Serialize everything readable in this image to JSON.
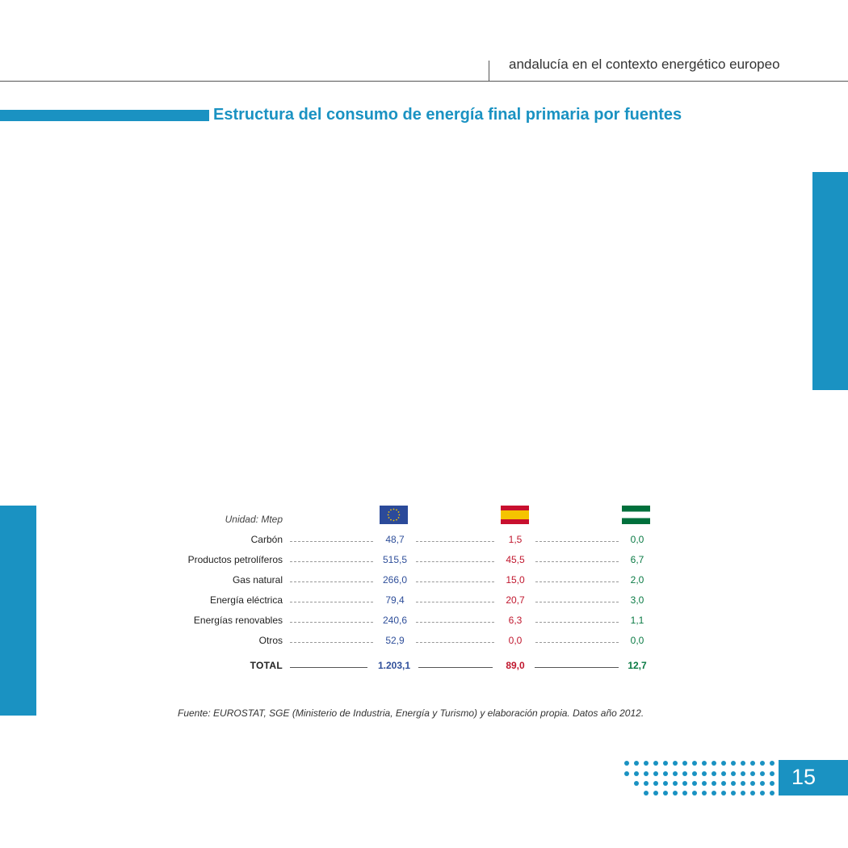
{
  "header": {
    "running_title": "andalucía en el contexto energético europeo"
  },
  "section": {
    "title": "Estructura del consumo de energía final primaria por fuentes"
  },
  "table": {
    "unit_label": "Unidad: Mtep",
    "columns": [
      {
        "flag": "eu-flag-icon"
      },
      {
        "flag": "spain-flag-icon"
      },
      {
        "flag": "andalusia-flag-icon"
      }
    ],
    "rows": [
      {
        "label": "Carbón",
        "eu": "48,7",
        "es": "1,5",
        "and": "0,0"
      },
      {
        "label": "Productos petrolíferos",
        "eu": "515,5",
        "es": "45,5",
        "and": "6,7"
      },
      {
        "label": "Gas natural",
        "eu": "266,0",
        "es": "15,0",
        "and": "2,0"
      },
      {
        "label": "Energía eléctrica",
        "eu": "79,4",
        "es": "20,7",
        "and": "3,0"
      },
      {
        "label": "Energías renovables",
        "eu": "240,6",
        "es": "6,3",
        "and": "1,1"
      },
      {
        "label": "Otros",
        "eu": "52,9",
        "es": "0,0",
        "and": "0,0"
      }
    ],
    "total": {
      "label": "TOTAL",
      "eu": "1.203,1",
      "es": "89,0",
      "and": "12,7"
    },
    "colors": {
      "eu": "#2f4f9a",
      "es": "#c0172e",
      "and": "#0a7a44"
    }
  },
  "source": "Fuente: EUROSTAT, SGE (Ministerio de Industria, Energía y Turismo) y elaboración propia. Datos año 2012.",
  "footer": {
    "page_number": "15"
  },
  "theme": {
    "accent": "#1a92c2"
  }
}
